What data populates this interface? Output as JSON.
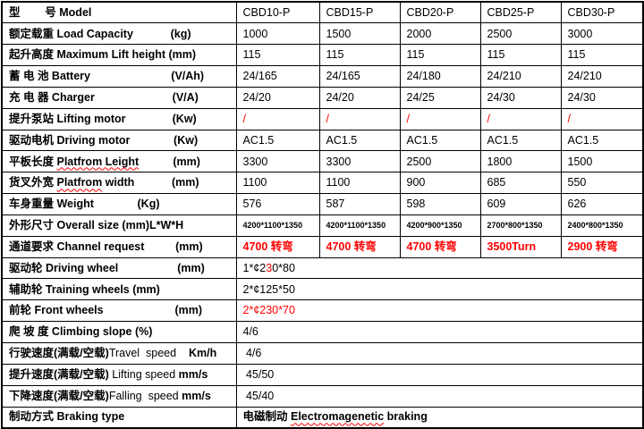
{
  "colors": {
    "background": "#ffffff",
    "border": "#000000",
    "text": "#000000",
    "highlight_red": "#ff0000"
  },
  "table": {
    "rows": [
      {
        "id": "model",
        "label": [
          {
            "t": "型        号 Model",
            "b": true
          }
        ],
        "values": [
          "CBD10-P",
          "CBD15-P",
          "CBD20-P",
          "CBD25-P",
          "CBD30-P"
        ]
      },
      {
        "id": "load-capacity",
        "label": [
          {
            "t": "额定载重 Load Capacity            (kg)",
            "b": true
          }
        ],
        "values": [
          "1000",
          "1500",
          "2000",
          "2500",
          "3000"
        ]
      },
      {
        "id": "lift-height",
        "label": [
          {
            "t": "起升高度 Maximum Lift height (mm)",
            "b": true
          }
        ],
        "values": [
          "115",
          "115",
          "115",
          "115",
          "115"
        ]
      },
      {
        "id": "battery",
        "label": [
          {
            "t": "蓄 电 池 Battery                          (V/Ah)",
            "b": true
          }
        ],
        "values": [
          "24/165",
          "24/165",
          "24/180",
          "24/210",
          "24/210"
        ]
      },
      {
        "id": "charger",
        "label": [
          {
            "t": "充 电 器 Charger                         (V/A)",
            "b": true
          }
        ],
        "values": [
          "24/20",
          "24/20",
          "24/25",
          "24/30",
          "24/30"
        ]
      },
      {
        "id": "lifting-motor",
        "label": [
          {
            "t": "提升泵站 Lifting motor               (Kw)",
            "b": true
          }
        ],
        "values": [
          "/",
          "/",
          "/",
          "/",
          "/"
        ],
        "values_red": true
      },
      {
        "id": "driving-motor",
        "label": [
          {
            "t": "驱动电机 Driving motor              (Kw)",
            "b": true
          }
        ],
        "values": [
          "AC1.5",
          "AC1.5",
          "AC1.5",
          "AC1.5",
          "AC1.5"
        ]
      },
      {
        "id": "platform-length",
        "label": [
          {
            "t": "平板长度 ",
            "b": true
          },
          {
            "t": "Platfrom Leight",
            "b": true,
            "w": true
          },
          {
            "t": "           (mm)",
            "b": true
          }
        ],
        "values": [
          "3300",
          "3300",
          "2500",
          "1800",
          "1500"
        ]
      },
      {
        "id": "platform-width",
        "label": [
          {
            "t": "货叉外宽 ",
            "b": true
          },
          {
            "t": "Platfrom",
            "b": true,
            "w": true
          },
          {
            "t": " width",
            "b": true
          },
          {
            "t": "            (mm)",
            "b": true
          }
        ],
        "values": [
          "1100",
          "1100",
          "900",
          "685",
          "550"
        ]
      },
      {
        "id": "weight",
        "label": [
          {
            "t": "车身重量 Weight              (Kg)",
            "b": true
          }
        ],
        "values": [
          "576",
          "587",
          "598",
          "609",
          "626"
        ]
      },
      {
        "id": "overall-size",
        "label": [
          {
            "t": "外形尺寸 Overall size (mm)L*W*H",
            "b": true
          }
        ],
        "values": [
          "4200*1100*1350",
          "4200*1100*1350",
          "4200*900*1350",
          "2700*800*1350",
          "2400*800*1350"
        ],
        "values_small": true,
        "values_bold": true
      },
      {
        "id": "channel-request",
        "label": [
          {
            "t": "通道要求 Channel request          (mm)",
            "b": true
          }
        ],
        "values": [
          "4700 转弯",
          "4700 转弯",
          "4700 转弯",
          "3500Turn",
          "2900 转弯"
        ],
        "values_red": true,
        "values_bold": true
      },
      {
        "id": "driving-wheel",
        "label": [
          {
            "t": "驱动轮 Driving wheel                   (mm)",
            "b": true
          }
        ],
        "value": [
          {
            "t": "1*¢2"
          },
          {
            "t": "3",
            "r": true
          },
          {
            "t": "0*80"
          }
        ]
      },
      {
        "id": "training-wheels",
        "label": [
          {
            "t": "辅助轮 Training wheels (mm)",
            "b": true
          }
        ],
        "value": [
          {
            "t": "2*¢125*50"
          }
        ]
      },
      {
        "id": "front-wheels",
        "label": [
          {
            "t": "前轮 Front wheels                       (mm)",
            "b": true
          }
        ],
        "value": [
          {
            "t": "2*¢230*70",
            "r": true
          }
        ]
      },
      {
        "id": "climbing-slope",
        "label": [
          {
            "t": "爬 坡 度 Climbing slope (%)",
            "b": true
          }
        ],
        "value": [
          {
            "t": "4/6"
          }
        ]
      },
      {
        "id": "travel-speed",
        "label": [
          {
            "t": "行驶速度(满载/空载)",
            "b": true
          },
          {
            "t": "Travel  speed    ",
            "b": false
          },
          {
            "t": "Km/h",
            "b": true
          }
        ],
        "value": [
          {
            "t": " 4/6"
          }
        ]
      },
      {
        "id": "lifting-speed",
        "label": [
          {
            "t": "提升速度(满载/空载)",
            "b": true
          },
          {
            "t": " Lifting speed ",
            "b": false
          },
          {
            "t": "mm/s",
            "b": true
          }
        ],
        "value": [
          {
            "t": " 45/50"
          }
        ]
      },
      {
        "id": "falling-speed",
        "label": [
          {
            "t": "下降速度(满载/空载)",
            "b": true
          },
          {
            "t": "Falling  speed ",
            "b": false
          },
          {
            "t": "mm/s",
            "b": true
          }
        ],
        "value": [
          {
            "t": " 45/40"
          }
        ]
      },
      {
        "id": "braking-type",
        "label": [
          {
            "t": "制动方式 Braking type",
            "b": true
          }
        ],
        "value": [
          {
            "t": "电磁制动 ",
            "b": true
          },
          {
            "t": "Electromagenetic",
            "b": true,
            "w": true
          },
          {
            "t": " braking",
            "b": true
          }
        ]
      }
    ]
  }
}
